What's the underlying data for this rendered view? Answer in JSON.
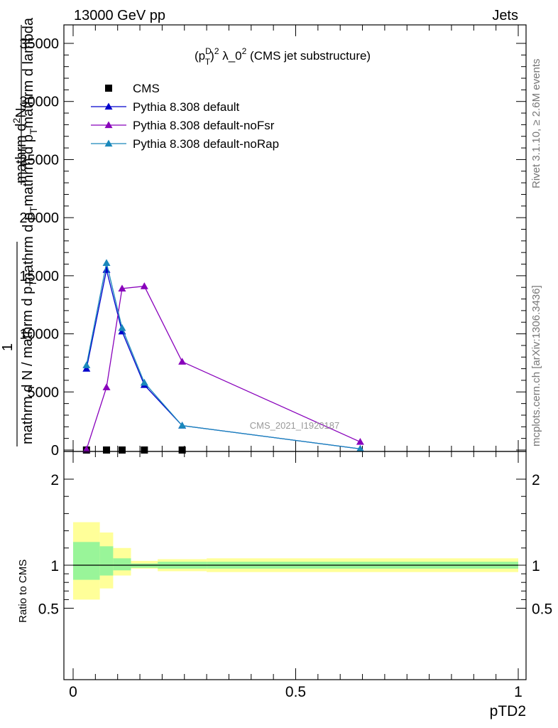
{
  "header": {
    "left_label": "13000 GeV pp",
    "right_label": "Jets"
  },
  "side_labels": {
    "top": "Rivet 3.1.10, ≥ 2.6M events",
    "bottom": "mcplots.cern.ch [arXiv:1306.3436]"
  },
  "chart_data": [
    {
      "type": "line",
      "title": "(p_T^D)^2 λ_0^2 (CMS jet substructure)",
      "title_parts": {
        "base": "(p",
        "sup_top": "D",
        "sub": "T",
        "close": ")",
        "sup2": "2",
        "lambda": " λ_0",
        "sup3": "2",
        "rest": " (CMS jet substructure)"
      },
      "ylabel": "1 / mathrm d N / mathrm d p_T mathrm d p_T mathrm d lambda mathrm d^2N",
      "ylabel_parts": {
        "numerator_one": "1",
        "denom": "mathrm d N / mathrm d p",
        "denom_sub": "T",
        "top_line": "mathrm d",
        "top_sup": "2",
        "top_rest": "N",
        "bottom_line": "mathrm d p",
        "bottom_sub": "T",
        "bottom_rest": "mathrm d p",
        "bottom_sub2": "T",
        "bottom_rest2": "mathrm d lambda"
      },
      "watermark": "CMS_2021_I1920187",
      "xlim": [
        0,
        1
      ],
      "ylim": [
        0,
        36500
      ],
      "yticks": [
        {
          "value": 0,
          "label": "0"
        },
        {
          "value": 5000,
          "label": "5000"
        },
        {
          "value": 10000,
          "label": "10000"
        },
        {
          "value": 15000,
          "label": "15000"
        },
        {
          "value": 20000,
          "label": "20000"
        },
        {
          "value": 25000,
          "label": "25000"
        },
        {
          "value": 30000,
          "label": "30000"
        },
        {
          "value": 35000,
          "label": "35000"
        }
      ],
      "grid": false,
      "legend_placement": "top-left",
      "series": [
        {
          "name": "CMS",
          "color": "#000000",
          "marker": "square",
          "line": false,
          "x": [
            0.03,
            0.075,
            0.11,
            0.16,
            0.245
          ],
          "y": [
            0,
            0,
            0,
            0,
            0
          ]
        },
        {
          "name": "Pythia 8.308 default",
          "color": "#0000cc",
          "marker": "triangle",
          "line": true,
          "x": [
            0.03,
            0.075,
            0.11,
            0.16,
            0.245,
            0.645
          ],
          "y": [
            7000,
            15500,
            10200,
            5600,
            2100,
            100
          ]
        },
        {
          "name": "Pythia 8.308 default-noFsr",
          "color": "#8800bb",
          "marker": "triangle",
          "line": true,
          "x": [
            0.03,
            0.075,
            0.11,
            0.16,
            0.245,
            0.645
          ],
          "y": [
            50,
            5400,
            13900,
            14100,
            7600,
            700
          ]
        },
        {
          "name": "Pythia 8.308 default-noRap",
          "color": "#1a88bb",
          "marker": "triangle",
          "line": true,
          "x": [
            0.03,
            0.075,
            0.11,
            0.16,
            0.245,
            0.645
          ],
          "y": [
            7300,
            16100,
            10500,
            5800,
            2100,
            100
          ]
        }
      ]
    },
    {
      "type": "area",
      "ylabel": "Ratio to CMS",
      "xlabel": "pTD2",
      "xlim": [
        0,
        1
      ],
      "ylim": [
        0.3,
        2.3
      ],
      "xticks": [
        {
          "value": 0,
          "label": "0"
        },
        {
          "value": 0.5,
          "label": "0.5"
        },
        {
          "value": 1,
          "label": "1"
        }
      ],
      "yticks": [
        {
          "value": 0.5,
          "label": "0.5"
        },
        {
          "value": 1,
          "label": "1"
        },
        {
          "value": 2,
          "label": "2"
        }
      ],
      "reference_line": 1,
      "bands": [
        {
          "x0": 0.0,
          "x1": 0.06,
          "inner": [
            0.83,
            1.27
          ],
          "outer": [
            0.6,
            1.5
          ]
        },
        {
          "x0": 0.06,
          "x1": 0.09,
          "inner": [
            0.88,
            1.22
          ],
          "outer": [
            0.73,
            1.38
          ]
        },
        {
          "x0": 0.09,
          "x1": 0.13,
          "inner": [
            0.94,
            1.08
          ],
          "outer": [
            0.88,
            1.2
          ]
        },
        {
          "x0": 0.13,
          "x1": 0.19,
          "inner": [
            0.97,
            1.02
          ],
          "outer": [
            0.96,
            1.05
          ]
        },
        {
          "x0": 0.19,
          "x1": 0.3,
          "inner": [
            0.96,
            1.04
          ],
          "outer": [
            0.93,
            1.07
          ]
        },
        {
          "x0": 0.3,
          "x1": 1.0,
          "inner": [
            0.96,
            1.04
          ],
          "outer": [
            0.92,
            1.08
          ]
        }
      ],
      "colors": {
        "inner": "#99f599",
        "outer": "#ffff99"
      }
    }
  ]
}
